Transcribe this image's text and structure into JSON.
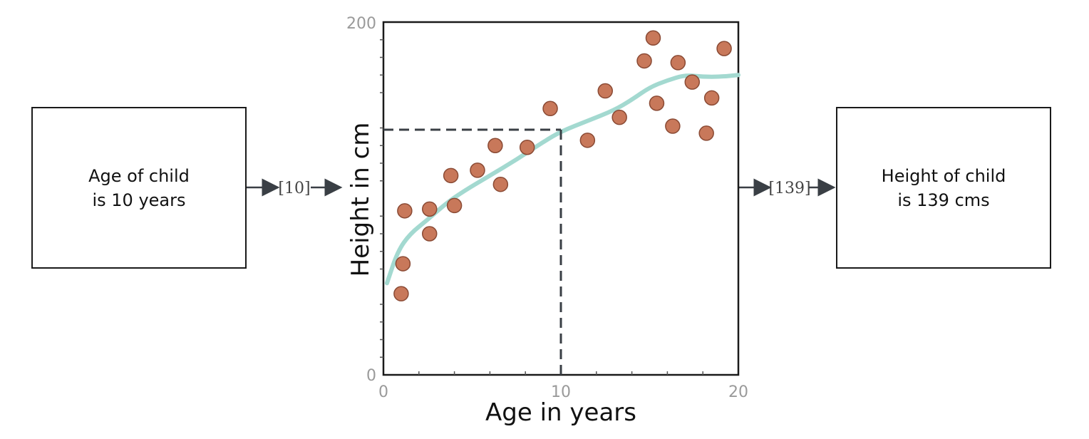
{
  "input": {
    "line1": "Age of child",
    "line2": "is 10 years",
    "vector": "[10]"
  },
  "output": {
    "line1": "Height of child",
    "line2": "is 139 cms",
    "vector": "[139]"
  },
  "chart_data": {
    "type": "scatter",
    "xlabel": "Age in years",
    "ylabel": "Height in cm",
    "xlim": [
      0,
      20
    ],
    "ylim": [
      0,
      200
    ],
    "x_ticks": [
      "0",
      "10",
      "20"
    ],
    "y_ticks": [
      "0",
      "200"
    ],
    "points": [
      [
        1.0,
        46
      ],
      [
        1.1,
        63
      ],
      [
        1.2,
        93
      ],
      [
        2.6,
        94
      ],
      [
        2.6,
        80
      ],
      [
        3.8,
        113
      ],
      [
        4.0,
        96
      ],
      [
        5.3,
        116
      ],
      [
        6.3,
        130
      ],
      [
        6.6,
        108
      ],
      [
        8.1,
        129
      ],
      [
        9.4,
        151
      ],
      [
        11.5,
        133
      ],
      [
        12.5,
        161
      ],
      [
        13.3,
        146
      ],
      [
        14.7,
        178
      ],
      [
        15.2,
        191
      ],
      [
        15.4,
        154
      ],
      [
        16.3,
        141
      ],
      [
        16.6,
        177
      ],
      [
        17.4,
        166
      ],
      [
        18.2,
        137
      ],
      [
        18.5,
        157
      ],
      [
        19.2,
        185
      ]
    ],
    "fit_curve": [
      [
        0.2,
        52
      ],
      [
        0.8,
        70
      ],
      [
        1.5,
        80
      ],
      [
        2.5,
        88
      ],
      [
        3.5,
        97
      ],
      [
        4.5,
        104
      ],
      [
        6,
        113
      ],
      [
        7.5,
        122
      ],
      [
        9,
        132
      ],
      [
        10,
        138
      ],
      [
        11.5,
        144
      ],
      [
        13,
        150
      ],
      [
        14,
        156
      ],
      [
        15,
        163
      ],
      [
        16,
        167
      ],
      [
        17,
        170
      ],
      [
        18,
        169
      ],
      [
        19,
        169
      ],
      [
        20,
        170
      ]
    ],
    "query": {
      "x": 10,
      "y": 139
    },
    "colors": {
      "points": "#c8785a",
      "point_edge": "#8a4a34",
      "fit": "#a3d9d0",
      "dashed": "#3a3f45"
    }
  }
}
